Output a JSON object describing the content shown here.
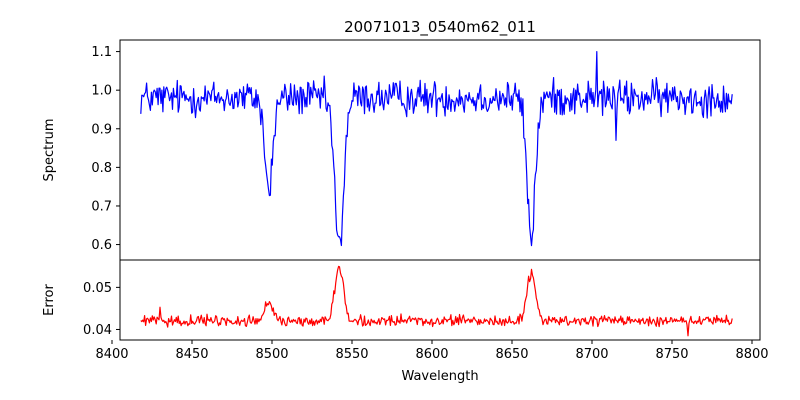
{
  "chart_data": {
    "type": "line",
    "title": "20071013_0540m62_011",
    "xlabel": "Wavelength",
    "xlim": [
      8405,
      8805
    ],
    "xticks": [
      8400,
      8450,
      8500,
      8550,
      8600,
      8650,
      8700,
      8750,
      8800
    ],
    "x_start": 8418,
    "x_end": 8788,
    "panels": [
      {
        "ylabel": "Spectrum",
        "ylim": [
          0.56,
          1.13
        ],
        "yticks": [
          0.6,
          0.7,
          0.8,
          0.9,
          1.0,
          1.1
        ],
        "ytick_labels": [
          "0.6",
          "0.7",
          "0.8",
          "0.9",
          "1.0",
          "1.1"
        ],
        "series": [
          {
            "color": "#0000ff",
            "continuum": 0.98,
            "noise": 0.045,
            "features": [
              {
                "center": 8498,
                "depth": 0.24,
                "width": 2.5
              },
              {
                "center": 8542,
                "depth": 0.39,
                "width": 2.8
              },
              {
                "center": 8662,
                "depth": 0.36,
                "width": 2.6
              }
            ],
            "anchors": [
              {
                "x": 8703,
                "y": 1.1
              },
              {
                "x": 8715,
                "y": 0.87
              }
            ]
          }
        ]
      },
      {
        "ylabel": "Error",
        "ylim": [
          0.0375,
          0.0565
        ],
        "yticks": [
          0.04,
          0.05
        ],
        "ytick_labels": [
          "0.04",
          "0.05"
        ],
        "series": [
          {
            "color": "#ff0000",
            "continuum": 0.042,
            "noise": 0.0012,
            "features": [
              {
                "center": 8498,
                "depth": -0.0045,
                "width": 2.5
              },
              {
                "center": 8542,
                "depth": -0.0125,
                "width": 2.8
              },
              {
                "center": 8662,
                "depth": -0.0115,
                "width": 2.6
              }
            ],
            "anchors": [
              {
                "x": 8430,
                "y": 0.0453
              },
              {
                "x": 8760,
                "y": 0.0385
              },
              {
                "x": 8788,
                "y": 0.039
              }
            ]
          }
        ]
      }
    ]
  }
}
